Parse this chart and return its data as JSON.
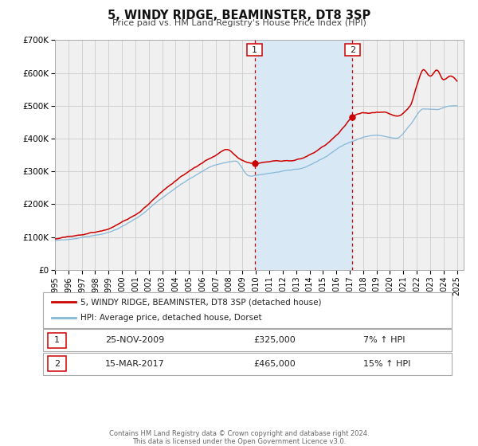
{
  "title": "5, WINDY RIDGE, BEAMINSTER, DT8 3SP",
  "subtitle": "Price paid vs. HM Land Registry's House Price Index (HPI)",
  "legend_line1": "5, WINDY RIDGE, BEAMINSTER, DT8 3SP (detached house)",
  "legend_line2": "HPI: Average price, detached house, Dorset",
  "annotation1_date": "25-NOV-2009",
  "annotation1_price": "£325,000",
  "annotation1_hpi": "7% ↑ HPI",
  "annotation2_date": "15-MAR-2017",
  "annotation2_price": "£465,000",
  "annotation2_hpi": "15% ↑ HPI",
  "vline1_x": 2009.9,
  "vline2_x": 2017.2,
  "marker1_x": 2009.9,
  "marker1_y": 325000,
  "marker2_x": 2017.2,
  "marker2_y": 465000,
  "shade_x1": 2009.9,
  "shade_x2": 2017.2,
  "xmin": 1995.0,
  "xmax": 2025.5,
  "ymin": 0,
  "ymax": 700000,
  "yticks": [
    0,
    100000,
    200000,
    300000,
    400000,
    500000,
    600000,
    700000
  ],
  "ytick_labels": [
    "£0",
    "£100K",
    "£200K",
    "£300K",
    "£400K",
    "£500K",
    "£600K",
    "£700K"
  ],
  "hpi_color": "#85b8d8",
  "price_color": "#cc0000",
  "grid_color": "#cccccc",
  "bg_color": "#f0f0f0",
  "shade_color": "#d8e8f4",
  "footer_line1": "Contains HM Land Registry data © Crown copyright and database right 2024.",
  "footer_line2": "This data is licensed under the Open Government Licence v3.0."
}
